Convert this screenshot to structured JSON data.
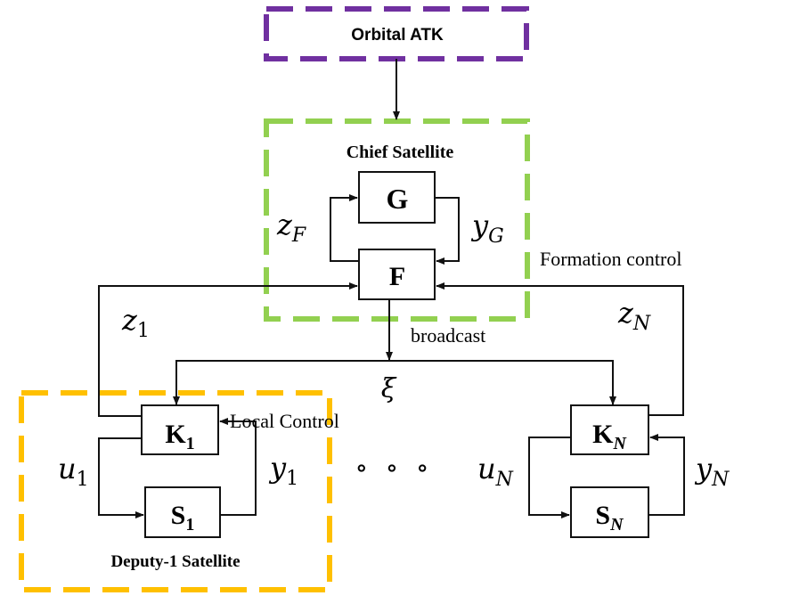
{
  "colors": {
    "orbital_border": "#7030A0",
    "chief_border": "#92D050",
    "deputy_border": "#FFC000",
    "line": "#111111"
  },
  "labels": {
    "orbital_atk": "Orbital ATK",
    "chief_satellite": "Chief Satellite",
    "deputy_satellite": "Deputy-1 Satellite",
    "formation_control": "Formation control",
    "broadcast": "broadcast",
    "local_control": "Local Control",
    "ellipsis": "∘ ∘ ∘"
  },
  "blocks": {
    "G": "G",
    "F": "F",
    "K1": {
      "base": "K",
      "sub": "1"
    },
    "S1": {
      "base": "S",
      "sub": "1"
    },
    "KN": {
      "base": "K",
      "sub": "N"
    },
    "SN": {
      "base": "S",
      "sub": "N"
    }
  },
  "signals": {
    "zF": {
      "base": "z",
      "sub": "F"
    },
    "yG": {
      "base": "y",
      "sub": "G"
    },
    "z1": {
      "base": "z",
      "sub": "1"
    },
    "zN": {
      "base": "z",
      "sub": "N"
    },
    "xi": "ξ",
    "u1": {
      "base": "u",
      "sub": "1"
    },
    "y1": {
      "base": "y",
      "sub": "1"
    },
    "uN": {
      "base": "u",
      "sub": "N"
    },
    "yN": {
      "base": "y",
      "sub": "N"
    }
  }
}
